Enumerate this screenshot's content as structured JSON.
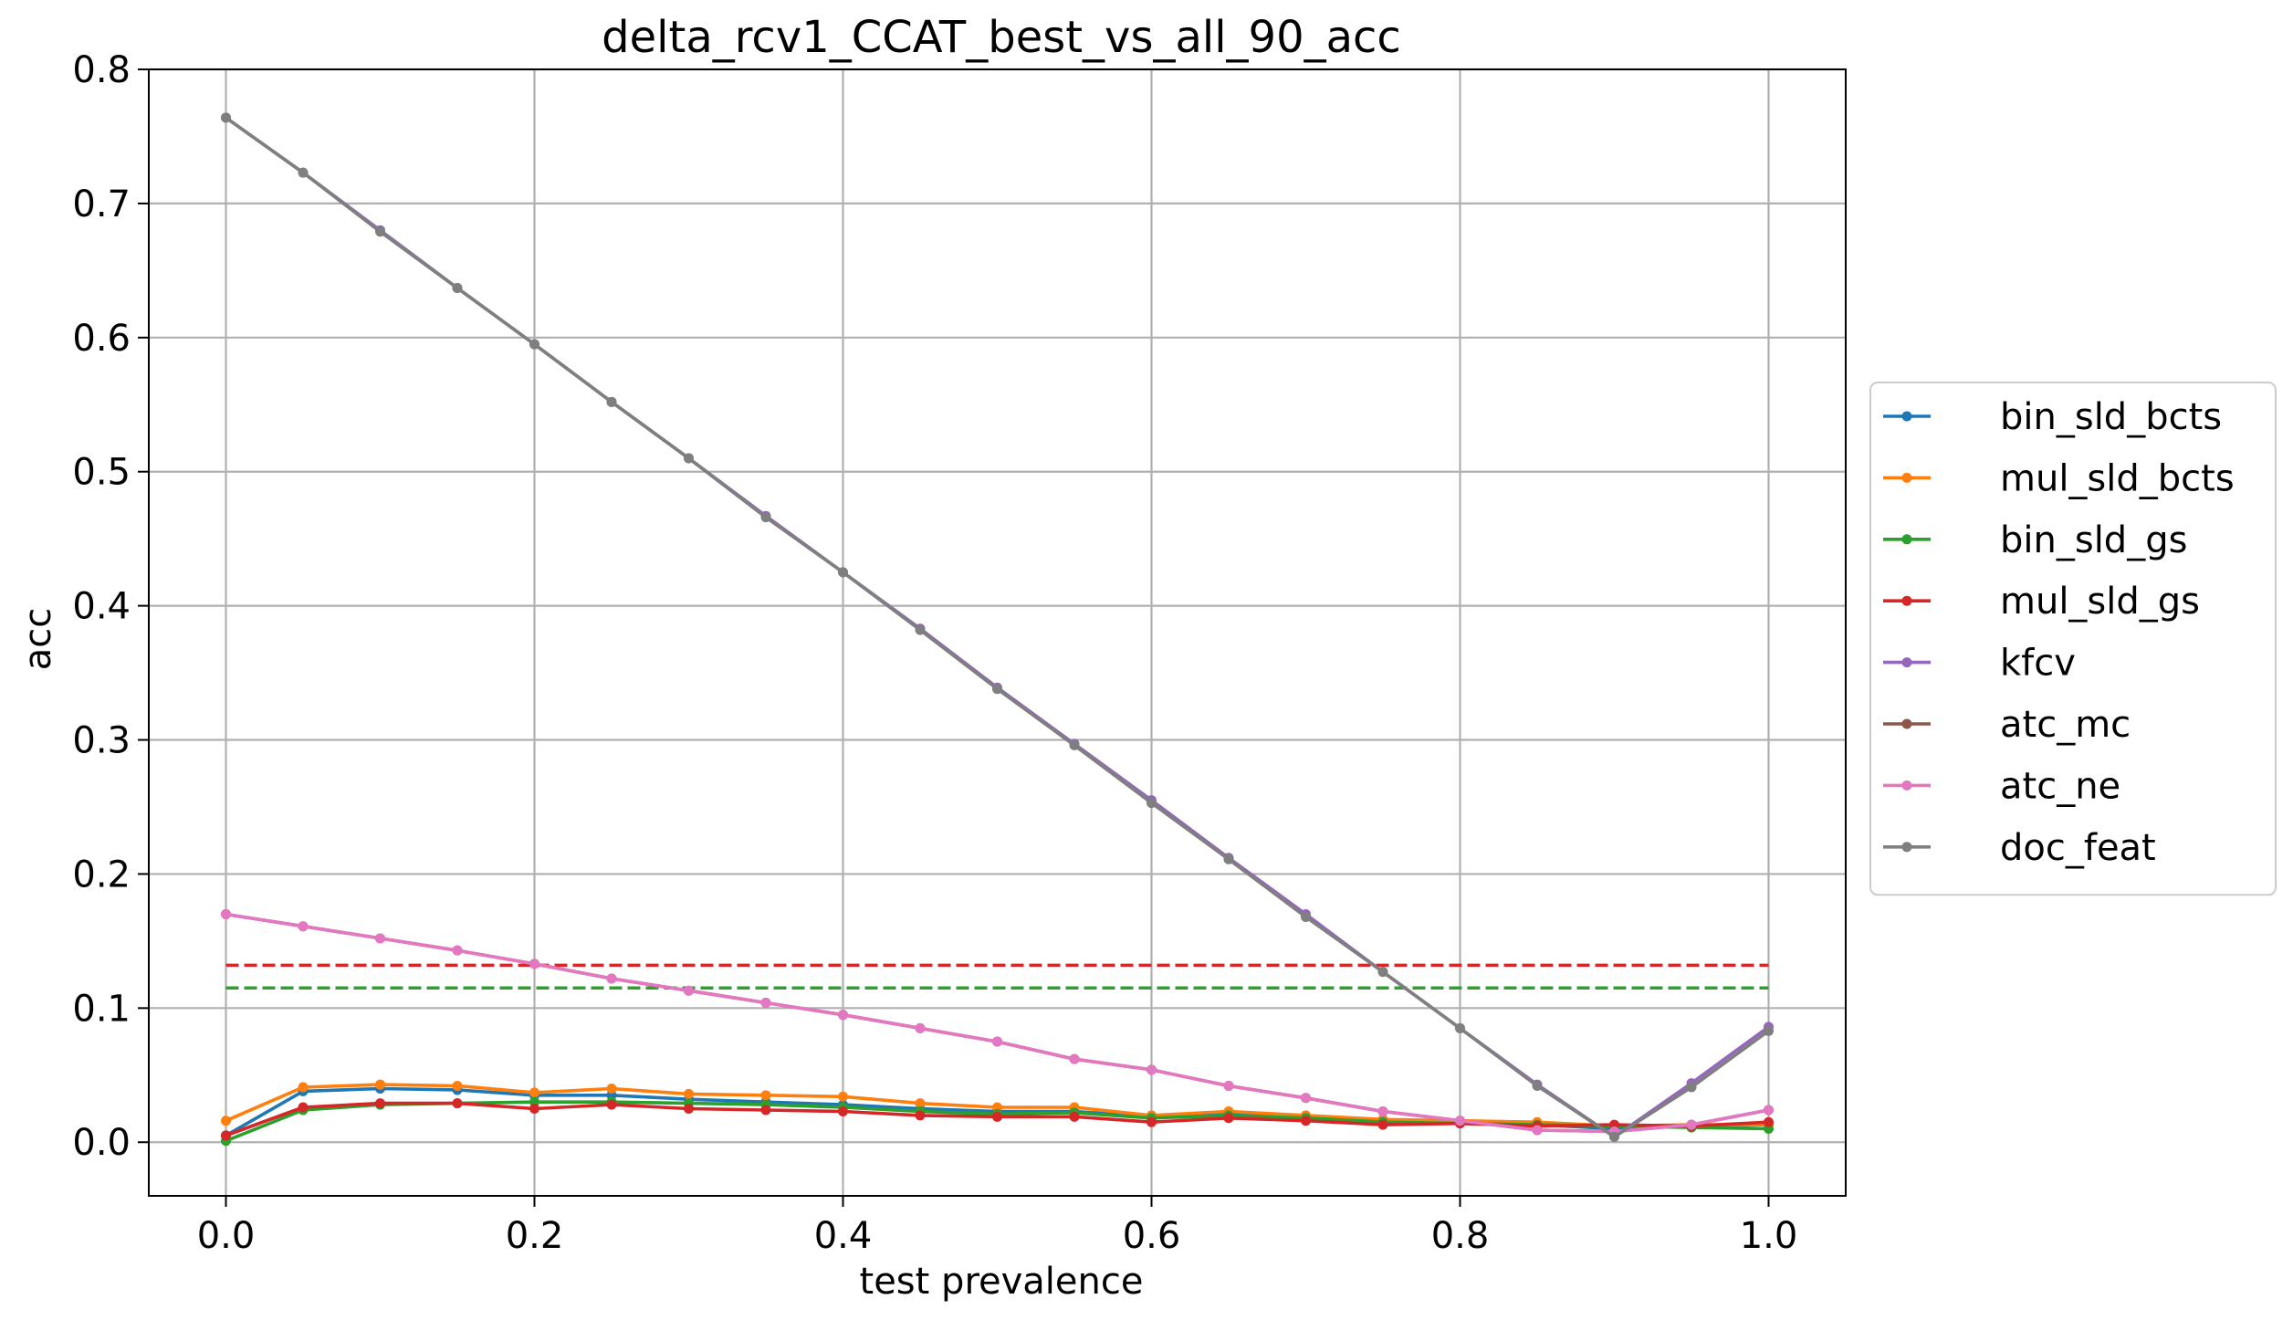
{
  "chart_data": {
    "type": "line",
    "title": "delta_rcv1_CCAT_best_vs_all_90_acc",
    "xlabel": "test prevalence",
    "ylabel": "acc",
    "xlim": [
      -0.05,
      1.05
    ],
    "ylim": [
      -0.04,
      0.8
    ],
    "xticks": [
      "0.0",
      "0.2",
      "0.4",
      "0.6",
      "0.8",
      "1.0"
    ],
    "yticks": [
      "0.0",
      "0.1",
      "0.2",
      "0.3",
      "0.4",
      "0.5",
      "0.6",
      "0.7",
      "0.8"
    ],
    "grid": true,
    "legend_position": "right outside",
    "x": [
      0.0,
      0.05,
      0.1,
      0.15,
      0.2,
      0.25,
      0.3,
      0.35,
      0.4,
      0.45,
      0.5,
      0.55,
      0.6,
      0.65,
      0.7,
      0.75,
      0.8,
      0.85,
      0.9,
      0.95,
      1.0
    ],
    "series": [
      {
        "name": "bin_sld_bcts",
        "color": "#1f77b4",
        "values": [
          0.005,
          0.038,
          0.04,
          0.039,
          0.035,
          0.035,
          0.032,
          0.03,
          0.028,
          0.025,
          0.023,
          0.023,
          0.019,
          0.021,
          0.018,
          0.016,
          0.015,
          0.013,
          0.01,
          0.012,
          0.013
        ]
      },
      {
        "name": "mul_sld_bcts",
        "color": "#ff7f0e",
        "values": [
          0.016,
          0.041,
          0.043,
          0.042,
          0.037,
          0.04,
          0.036,
          0.035,
          0.034,
          0.029,
          0.026,
          0.026,
          0.02,
          0.023,
          0.02,
          0.017,
          0.016,
          0.015,
          0.012,
          0.013,
          0.013
        ]
      },
      {
        "name": "bin_sld_gs",
        "color": "#2ca02c",
        "values": [
          0.001,
          0.024,
          0.028,
          0.029,
          0.03,
          0.03,
          0.029,
          0.028,
          0.026,
          0.023,
          0.021,
          0.022,
          0.018,
          0.02,
          0.018,
          0.015,
          0.014,
          0.013,
          0.012,
          0.011,
          0.01
        ]
      },
      {
        "name": "mul_sld_gs",
        "color": "#d62728",
        "values": [
          0.005,
          0.026,
          0.029,
          0.029,
          0.025,
          0.028,
          0.025,
          0.024,
          0.023,
          0.02,
          0.019,
          0.019,
          0.015,
          0.018,
          0.016,
          0.013,
          0.014,
          0.012,
          0.013,
          0.012,
          0.015
        ]
      },
      {
        "name": "kfcv",
        "color": "#9467bd",
        "values": [
          0.764,
          0.723,
          0.68,
          0.637,
          0.595,
          0.552,
          0.51,
          0.467,
          0.425,
          0.383,
          0.339,
          0.297,
          0.255,
          0.212,
          0.17,
          0.127,
          0.085,
          0.043,
          0.004,
          0.044,
          0.086
        ]
      },
      {
        "name": "atc_mc",
        "color": "#8c564b",
        "values": [
          0.17,
          0.161,
          0.152,
          0.143,
          0.133,
          0.122,
          0.113,
          0.104,
          0.095,
          0.085,
          0.075,
          0.062,
          0.054,
          0.042,
          0.033,
          0.023,
          0.016,
          0.009,
          0.008,
          0.013,
          0.024
        ]
      },
      {
        "name": "atc_ne",
        "color": "#e377c2",
        "values": [
          0.17,
          0.161,
          0.152,
          0.143,
          0.133,
          0.122,
          0.113,
          0.104,
          0.095,
          0.085,
          0.075,
          0.062,
          0.054,
          0.042,
          0.033,
          0.023,
          0.016,
          0.009,
          0.008,
          0.013,
          0.024
        ]
      },
      {
        "name": "doc_feat",
        "color": "#7f7f7f",
        "values": [
          0.764,
          0.723,
          0.679,
          0.637,
          0.595,
          0.552,
          0.51,
          0.466,
          0.425,
          0.382,
          0.338,
          0.296,
          0.253,
          0.211,
          0.168,
          0.127,
          0.085,
          0.042,
          0.004,
          0.041,
          0.083
        ]
      }
    ],
    "reference_lines": [
      {
        "color": "#d62728",
        "y": 0.132,
        "style": "dashed"
      },
      {
        "color": "#2ca02c",
        "y": 0.115,
        "style": "dashed"
      }
    ]
  }
}
